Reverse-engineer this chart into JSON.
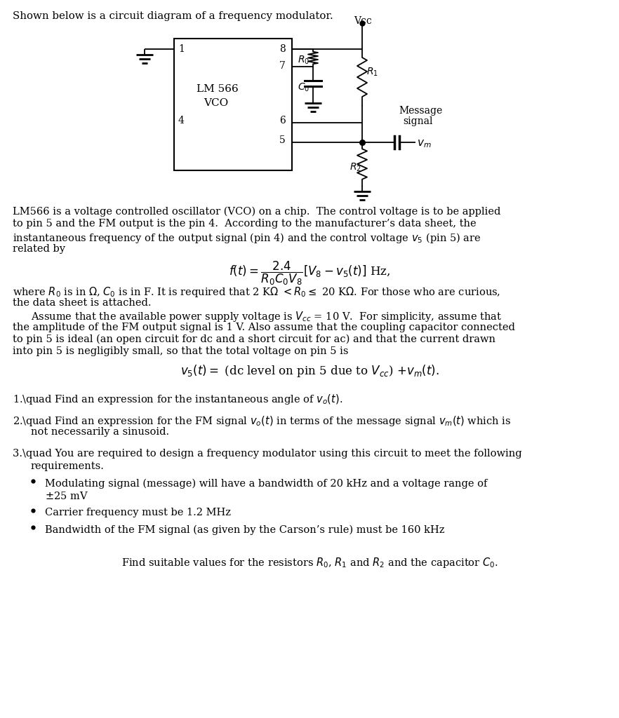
{
  "bg_color": "#ffffff",
  "text_color": "#000000",
  "page_width": 8.82,
  "page_height": 10.24,
  "title": "Shown below is a circuit diagram of a frequency modulator.",
  "body_lines_p1": [
    "LM566 is a voltage controlled oscillator (VCO) on a chip.  The control voltage is to be applied",
    "to pin 5 and the FM output is the pin 4.  According to the manufacturer’s data sheet, the",
    "instantaneous frequency of the output signal (pin 4) and the control voltage $v_5$ (pin 5) are",
    "related by"
  ],
  "formula1": "$f(t) = \\dfrac{2.4}{R_0C_0V_8}\\left[V_8 - v_5(t)\\right]$ Hz,",
  "where_line": "where $R_0$ is in $\\Omega$, $C_0$ is in F. It is required that 2 K$\\Omega$ $< R_0 \\leq$ 20 K$\\Omega$. For those who are curious,",
  "datasheet_line": "the data sheet is attached.",
  "body_lines_p2": [
    "Assume that the available power supply voltage is $V_{cc}$ = 10 V.  For simplicity, assume that",
    "the amplitude of the FM output signal is 1 V. Also assume that the coupling capacitor connected",
    "to pin 5 is ideal (an open circuit for dc and a short circuit for ac) and that the current drawn",
    "into pin 5 is negligibly small, so that the total voltage on pin 5 is"
  ],
  "formula2": "$v_5(t) = $ (dc level on pin 5 due to $V_{cc}$) $+ v_m(t).$",
  "q1": "1.\\quad Find an expression for the instantaneous angle of $v_o(t)$.",
  "q2a": "2.\\quad Find an expression for the FM signal $v_o(t)$ in terms of the message signal $v_m(t)$ which is",
  "q2b": "not necessarily a sinusoid.",
  "q3a": "3.\\quad You are required to design a frequency modulator using this circuit to meet the following",
  "q3b": "requirements.",
  "bullet1a": "Modulating signal (message) will have a bandwidth of 20 kHz and a voltage range of",
  "bullet1b": "$\\pm$25 mV",
  "bullet2": "Carrier frequency must be 1.2 MHz",
  "bullet3": "Bandwidth of the FM signal (as given by the Carson’s rule) must be 160 kHz",
  "find_line": "Find suitable values for the resistors $R_0$, $R_1$ and $R_2$ and the capacitor $C_0$."
}
